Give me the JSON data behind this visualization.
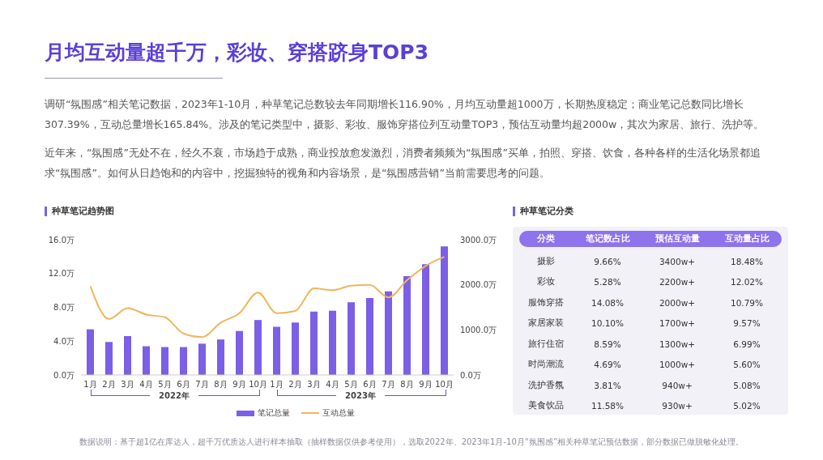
{
  "chart_data": [
    {
      "type": "other",
      "title": "月均互动量超千万，彩妆、穿搭跻身TOP3",
      "annotations": [
        "调研“氛围感”相关笔记数据，2023年1-10月，种草笔记总数较去年同期增长116.90%，月均互动量超1000万，长期热度稳定；商业笔记总数同比增长307.39%，互动总量增长165.84%。涉及的笔记类型中，摄影、彩妆、服饰穿搭位列互动量TOP3，预估互动量均超2000w，其次为家居、旅行、洗护等。",
        "近年来，“氛围感”无处不在，经久不衰，市场趋于成熟，商业投放愈发激烈，消费者频频为“氛围感”买单，拍照、穿搭、饮食，各种各样的生活化场景都追求“氛围感”。如何从日趋饱和的内容中，挖掘独特的视角和内容场景，是“氛围感营销”当前需要思考的问题。",
        "数据说明：基于超1亿在库达人，超千万优质达人进行样本抽取（抽样数据仅供参考使用），选取2022年、2023年1月-10月“氛围感”相关种草笔记预估数据，部分数据已做脱敏化处理。"
      ]
    },
    {
      "type": "bar",
      "title": "种草笔记趋势图",
      "categories": [
        "1月",
        "2月",
        "3月",
        "4月",
        "5月",
        "6月",
        "7月",
        "8月",
        "9月",
        "10月",
        "1月",
        "2月",
        "3月",
        "4月",
        "5月",
        "6月",
        "7月",
        "8月",
        "9月",
        "10月"
      ],
      "series": [
        {
          "name": "笔记总量",
          "type": "bar",
          "color": "#7b5fe6",
          "values": [
            5.4,
            3.9,
            4.6,
            3.4,
            3.3,
            3.3,
            3.7,
            4.2,
            5.2,
            6.5,
            5.7,
            6.2,
            7.5,
            7.6,
            8.6,
            9.1,
            9.9,
            11.7,
            13.1,
            15.2
          ]
        },
        {
          "name": "互动总量",
          "type": "line",
          "axis": "y2",
          "color": "#f0b55e",
          "values": [
            1970,
            1240,
            1480,
            1340,
            1280,
            920,
            840,
            1160,
            1370,
            1830,
            1370,
            1420,
            1920,
            1880,
            1980,
            2000,
            1720,
            2100,
            2420,
            2620
          ]
        }
      ],
      "ylim": [
        0,
        16
      ],
      "yticks": [
        {
          "value": 0,
          "label": "0.0万"
        },
        {
          "value": 4,
          "label": "4.0万"
        },
        {
          "value": 8,
          "label": "8.0万"
        },
        {
          "value": 12,
          "label": "12.0万"
        },
        {
          "value": 16,
          "label": "16.0万"
        }
      ],
      "y2lim": [
        0,
        3000
      ],
      "y2ticks": [
        {
          "value": 0,
          "label": "0.0万"
        },
        {
          "value": 1000,
          "label": "1000.0万"
        },
        {
          "value": 2000,
          "label": "2000.0万"
        },
        {
          "value": 3000,
          "label": "3000.0万"
        }
      ],
      "annotations": [
        "2022年",
        "2023年"
      ],
      "legend": "bottom"
    },
    {
      "type": "other",
      "title": "种草笔记分类",
      "xlabel": "分类",
      "categories": [
        "摄影",
        "彩妆",
        "服饰穿搭",
        "家居家装",
        "旅行住宿",
        "时尚潮流",
        "洗护香氛",
        "美食饮品"
      ],
      "series": [
        {
          "name": "笔记数占比",
          "values": [
            9.66,
            5.28,
            14.08,
            10.1,
            8.59,
            4.69,
            3.81,
            11.58
          ],
          "value_labels": [
            "9.66%",
            "5.28%",
            "14.08%",
            "10.10%",
            "8.59%",
            "4.69%",
            "3.81%",
            "11.58%"
          ]
        },
        {
          "name": "预估互动量",
          "values": [
            3400,
            2200,
            2000,
            1700,
            1300,
            1000,
            940,
            930
          ],
          "value_labels": [
            "3400w+",
            "2200w+",
            "2000w+",
            "1700w+",
            "1300w+",
            "1000w+",
            "940w+",
            "930w+"
          ]
        },
        {
          "name": "互动量占比",
          "values": [
            18.48,
            12.02,
            10.79,
            9.57,
            6.99,
            5.6,
            5.08,
            5.02
          ],
          "value_labels": [
            "18.48%",
            "12.02%",
            "10.79%",
            "9.57%",
            "6.99%",
            "5.60%",
            "5.08%",
            "5.02%"
          ]
        }
      ]
    }
  ]
}
